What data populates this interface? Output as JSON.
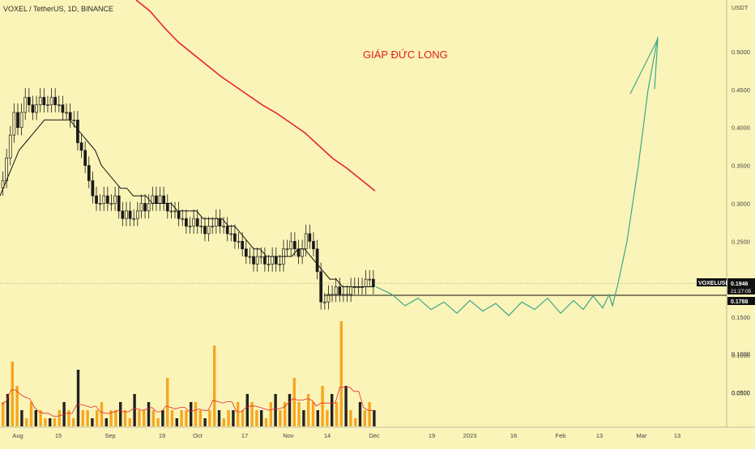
{
  "header": {
    "symbol_title": "VOXEL / TetherUS, 1D, BINANCE",
    "annotation": "GIÁP ĐỨC LONG"
  },
  "colors": {
    "background": "#fbf4b8",
    "candle": "#1a1a1a",
    "ma_fast": "#111111",
    "ma_slow": "#e8232a",
    "projection": "#3aa98a",
    "volume_bar": "#f5a623",
    "volume_bar_dark": "#222222",
    "volume_ma": "#e8232a"
  },
  "chart_data": {
    "type": "line",
    "price_axis": {
      "unit": "USDT",
      "ticks": [
        "0.5000",
        "0.4500",
        "0.4000",
        "0.3500",
        "0.3000",
        "0.2500",
        "0.1500",
        "0.1000",
        "0.0500"
      ],
      "ylim": [
        0.0,
        0.55
      ]
    },
    "time_axis": {
      "ticks": [
        "Aug",
        "15",
        "Sep",
        "19",
        "Oct",
        "17",
        "Nov",
        "14",
        "Dec",
        "19",
        "2023",
        "16",
        "Feb",
        "13",
        "Mar",
        "13"
      ]
    },
    "price_tags": {
      "symbol": "VOXELUSDT",
      "last_price": "0.1946",
      "countdown": "21:27:05",
      "level_price": "0.1788"
    },
    "candle_closes": [
      0.33,
      0.36,
      0.39,
      0.42,
      0.4,
      0.42,
      0.44,
      0.43,
      0.42,
      0.43,
      0.44,
      0.43,
      0.43,
      0.44,
      0.43,
      0.43,
      0.42,
      0.42,
      0.41,
      0.41,
      0.38,
      0.37,
      0.35,
      0.33,
      0.31,
      0.3,
      0.3,
      0.31,
      0.3,
      0.3,
      0.31,
      0.29,
      0.28,
      0.29,
      0.28,
      0.28,
      0.29,
      0.3,
      0.29,
      0.3,
      0.31,
      0.3,
      0.31,
      0.3,
      0.29,
      0.29,
      0.29,
      0.28,
      0.28,
      0.27,
      0.27,
      0.28,
      0.27,
      0.27,
      0.26,
      0.27,
      0.27,
      0.28,
      0.27,
      0.27,
      0.26,
      0.26,
      0.25,
      0.25,
      0.24,
      0.23,
      0.23,
      0.22,
      0.23,
      0.23,
      0.22,
      0.22,
      0.23,
      0.22,
      0.22,
      0.24,
      0.24,
      0.25,
      0.24,
      0.23,
      0.24,
      0.26,
      0.25,
      0.24,
      0.21,
      0.17,
      0.17,
      0.18,
      0.18,
      0.19,
      0.18,
      0.18,
      0.18,
      0.19,
      0.19,
      0.19,
      0.19,
      0.2,
      0.2,
      0.19
    ],
    "ma_fast": [
      0.31,
      0.33,
      0.35,
      0.37,
      0.38,
      0.39,
      0.4,
      0.41,
      0.41,
      0.41,
      0.41,
      0.41,
      0.4,
      0.39,
      0.38,
      0.37,
      0.35,
      0.34,
      0.33,
      0.32,
      0.32,
      0.31,
      0.31,
      0.31,
      0.3,
      0.3,
      0.3,
      0.3,
      0.29,
      0.29,
      0.29,
      0.29,
      0.28,
      0.28,
      0.28,
      0.28,
      0.27,
      0.27,
      0.26,
      0.25,
      0.24,
      0.24,
      0.23,
      0.23,
      0.23,
      0.23,
      0.23,
      0.24,
      0.24,
      0.23,
      0.22,
      0.21,
      0.2,
      0.2,
      0.19,
      0.19,
      0.19,
      0.19,
      0.19,
      0.19
    ],
    "ma_slow": [
      0.55,
      0.53,
      0.51,
      0.49,
      0.475,
      0.46,
      0.445,
      0.43,
      0.42,
      0.41,
      0.4,
      0.39,
      0.38,
      0.365,
      0.35,
      0.34,
      0.33,
      0.32
    ],
    "projection_path": [
      0.19,
      0.18,
      0.165,
      0.175,
      0.16,
      0.17,
      0.155,
      0.172,
      0.158,
      0.168,
      0.152,
      0.17,
      0.16,
      0.175,
      0.155,
      0.172,
      0.16,
      0.178,
      0.162,
      0.18,
      0.165,
      0.19,
      0.25,
      0.35,
      0.45,
      0.52
    ],
    "volume_values": [
      3,
      4,
      8,
      5,
      2,
      1,
      3,
      2,
      2,
      1,
      1,
      1,
      2,
      3,
      2,
      1,
      7,
      2,
      2,
      1,
      2,
      3,
      1,
      2,
      2,
      3,
      2,
      1,
      4,
      2,
      2,
      3,
      2,
      1,
      2,
      6,
      2,
      1,
      2,
      2,
      3,
      3,
      2,
      1,
      2,
      10,
      2,
      1,
      2,
      2,
      3,
      2,
      4,
      3,
      2,
      2,
      1,
      3,
      4,
      2,
      3,
      4,
      6,
      3,
      2,
      4,
      3,
      2,
      5,
      2,
      4,
      3,
      13,
      5,
      2,
      1,
      3,
      2,
      3,
      2
    ],
    "volume_ticks": [
      "0.1000",
      "0.0500"
    ]
  }
}
